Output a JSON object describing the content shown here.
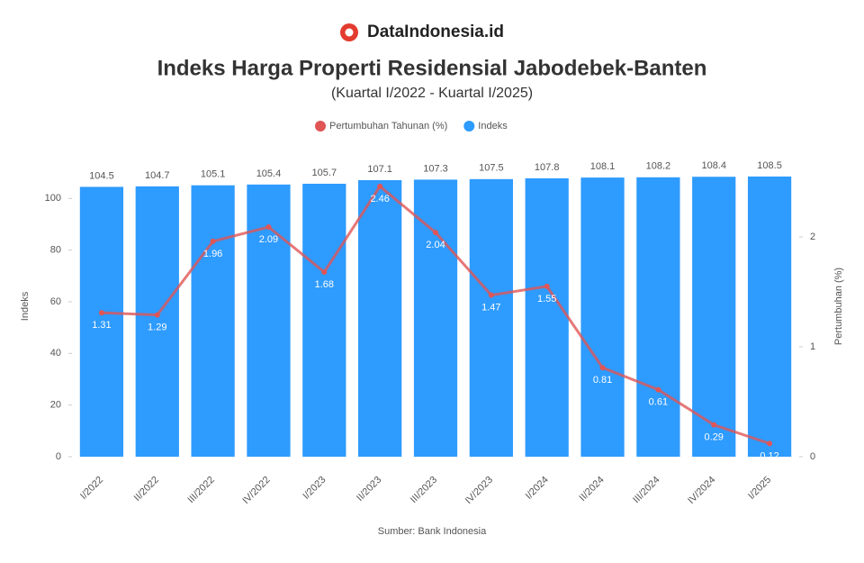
{
  "brand": "DataIndonesia.id",
  "chart_data": {
    "type": "bar-line",
    "title": "Indeks Harga Properti Residensial Jabodebek-Banten",
    "subtitle": "(Kuartal I/2022 - Kuartal I/2025)",
    "ylabel": "Indeks",
    "y2label": "Pertumbuhan (%)",
    "categories": [
      "I/2022",
      "II/2022",
      "III/2022",
      "IV/2022",
      "I/2023",
      "II/2023",
      "III/2023",
      "IV/2023",
      "I/2024",
      "II/2024",
      "III/2024",
      "IV/2024",
      "I/2025"
    ],
    "series": [
      {
        "name": "Pertumbuhan Tahunan (%)",
        "color": "#e05555",
        "axis": "y2",
        "kind": "line",
        "values": [
          1.31,
          1.29,
          1.96,
          2.09,
          1.68,
          2.46,
          2.04,
          1.47,
          1.55,
          0.81,
          0.61,
          0.29,
          0.12
        ]
      },
      {
        "name": "Indeks",
        "color": "#2e9bff",
        "axis": "y",
        "kind": "bar",
        "values": [
          104.5,
          104.7,
          105.1,
          105.4,
          105.7,
          107.1,
          107.3,
          107.5,
          107.8,
          108.1,
          108.2,
          108.4,
          108.5
        ]
      }
    ],
    "ylim": [
      0,
      120
    ],
    "yticks": [
      0,
      20,
      40,
      60,
      80,
      100
    ],
    "y2lim": [
      0,
      2.82
    ],
    "y2ticks": [
      0,
      1,
      2
    ],
    "legend": "top",
    "source": "Sumber: Bank Indonesia"
  }
}
